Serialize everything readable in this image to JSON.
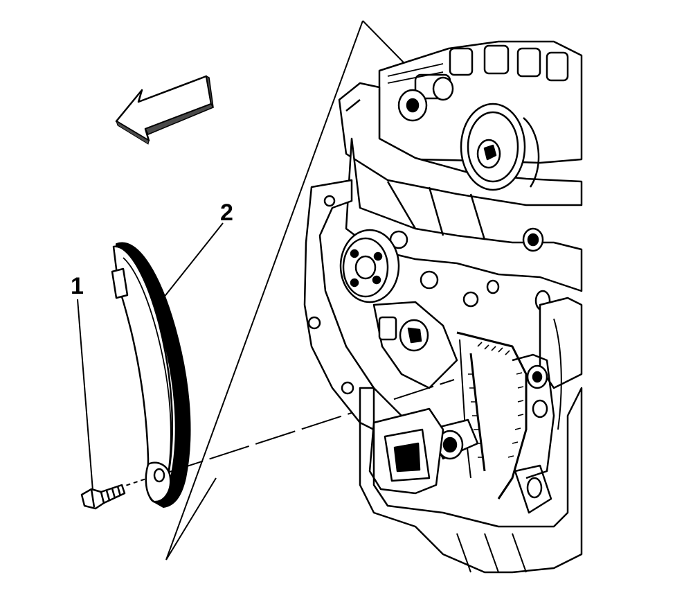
{
  "diagram": {
    "colors": {
      "ink": "#000000",
      "paper": "#ffffff",
      "arrow_shade": "#4a4a4a"
    },
    "callouts": [
      {
        "id": "1",
        "label": "1",
        "part": "bolt"
      },
      {
        "id": "2",
        "label": "2",
        "part": "chain-guide"
      }
    ],
    "direction_arrow": {
      "icon": "front-direction-arrow-icon"
    }
  }
}
